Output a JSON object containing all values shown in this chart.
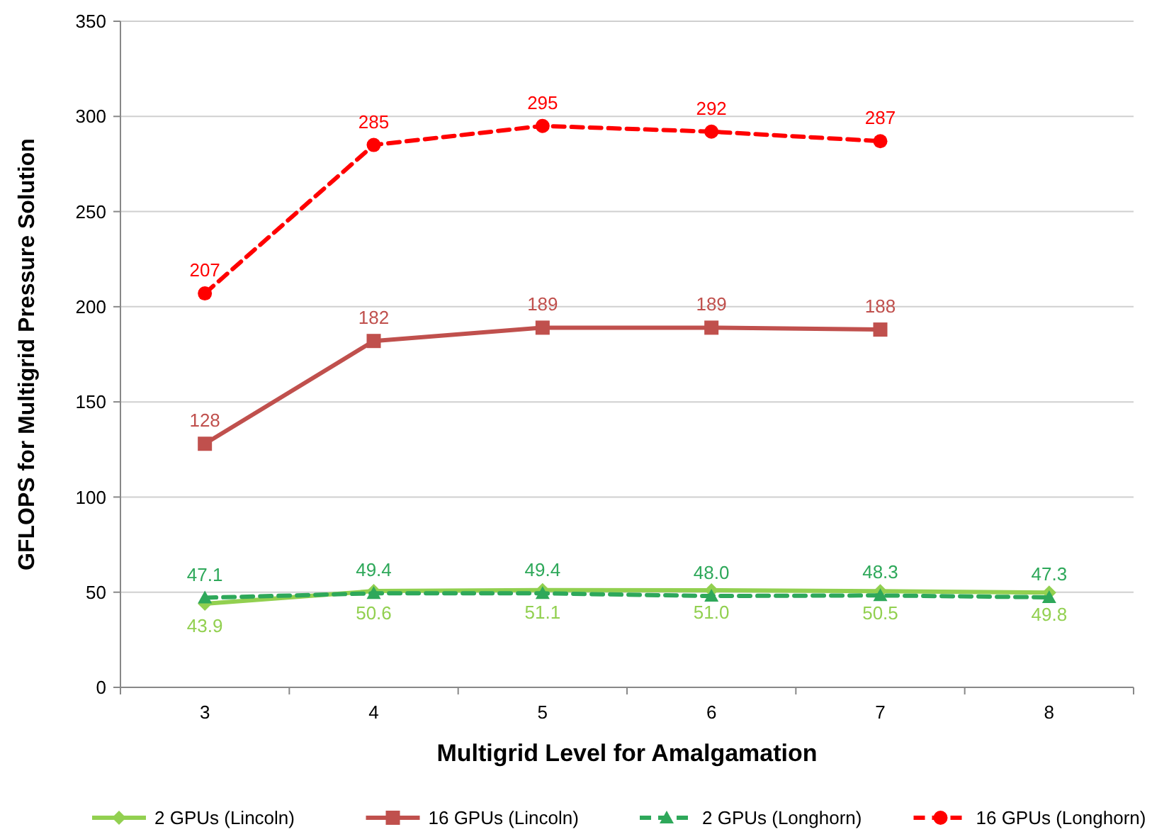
{
  "chart_data": {
    "type": "line",
    "xlabel": "Multigrid Level for Amalgamation",
    "ylabel": "GFLOPS for Multigrid Pressure Solution",
    "categories": [
      "3",
      "4",
      "5",
      "6",
      "7",
      "8"
    ],
    "ylim": [
      0,
      350
    ],
    "yticks": [
      0,
      50,
      100,
      150,
      200,
      250,
      300,
      350
    ],
    "grid": "y",
    "legend": "bottom",
    "series": [
      {
        "name": "2 GPUs (Lincoln)",
        "color": "#92d050",
        "marker": "diamond",
        "line_style": "solid",
        "values": [
          43.9,
          50.6,
          51.1,
          51.0,
          50.5,
          49.8
        ],
        "value_labels": [
          "43.9",
          "50.6",
          "51.1",
          "51.0",
          "50.5",
          "49.8"
        ]
      },
      {
        "name": "16 GPUs (Lincoln)",
        "color": "#c0504d",
        "marker": "square",
        "line_style": "solid",
        "values": [
          128,
          182,
          189,
          189,
          188,
          null
        ],
        "value_labels": [
          "128",
          "182",
          "189",
          "189",
          "188",
          null
        ]
      },
      {
        "name": "2 GPUs (Longhorn)",
        "color": "#2ea85a",
        "marker": "triangle",
        "line_style": "dashed",
        "values": [
          47.1,
          49.4,
          49.4,
          48.0,
          48.3,
          47.3
        ],
        "value_labels": [
          "47.1",
          "49.4",
          "49.4",
          "48.0",
          "48.3",
          "47.3"
        ]
      },
      {
        "name": "16 GPUs (Longhorn)",
        "color": "#ff0000",
        "marker": "circle",
        "line_style": "dashed",
        "values": [
          207,
          285,
          295,
          292,
          287,
          null
        ],
        "value_labels": [
          "207",
          "285",
          "295",
          "292",
          "287",
          null
        ]
      }
    ]
  }
}
